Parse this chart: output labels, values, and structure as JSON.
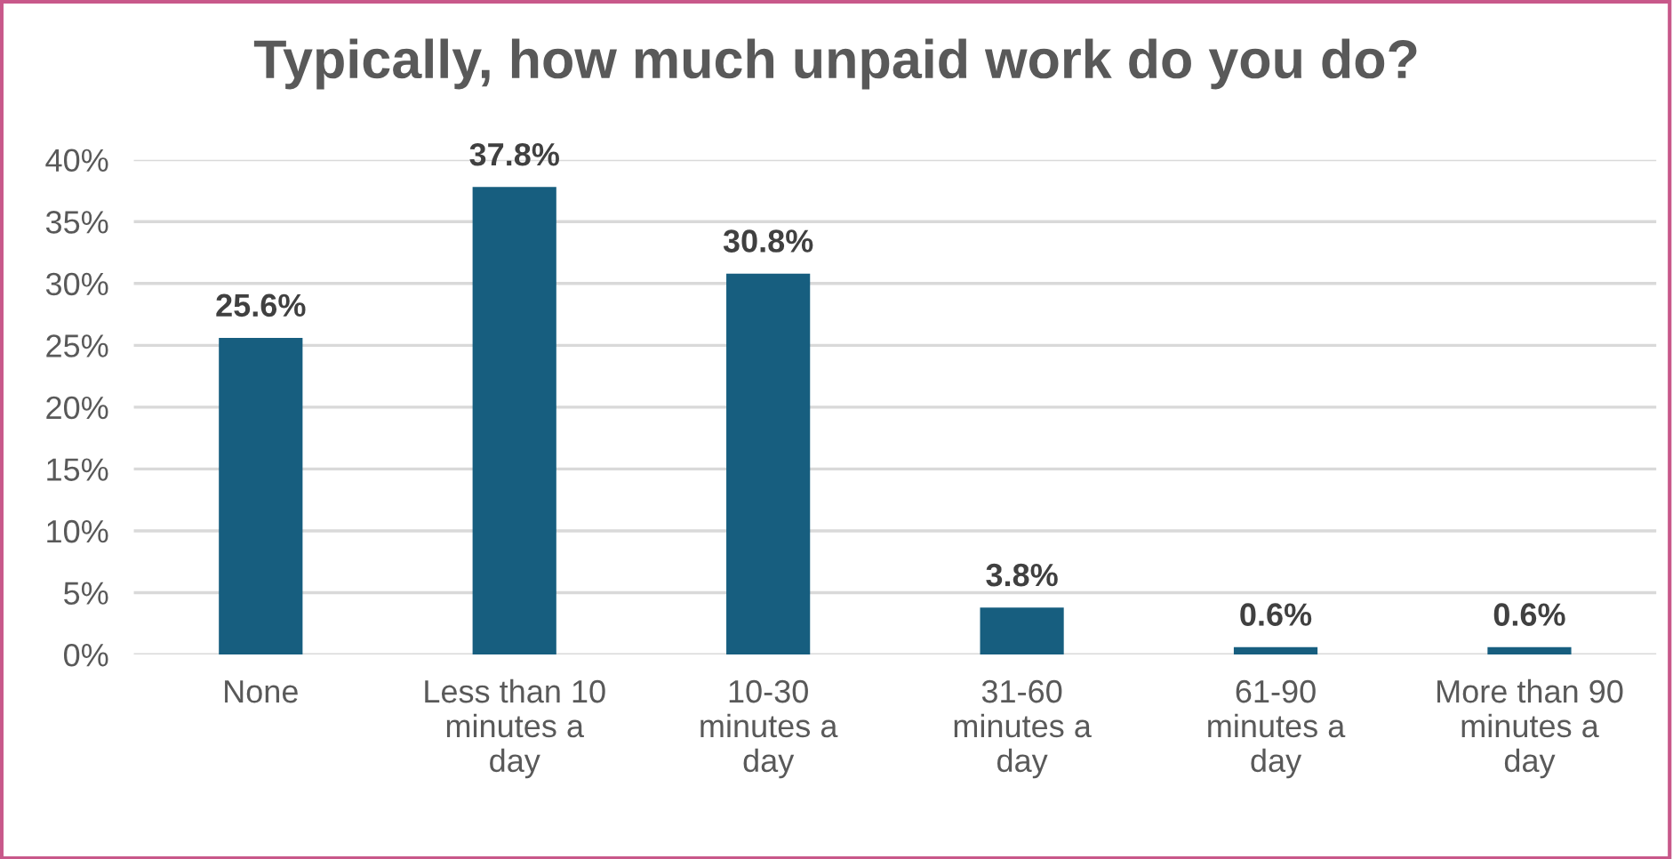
{
  "chart_data": {
    "type": "bar",
    "title": "Typically, how much unpaid work do you do?",
    "categories": [
      "None",
      "Less than 10\nminutes a\nday",
      "10-30\nminutes a\nday",
      "31-60\nminutes a\nday",
      "61-90\nminutes a\nday",
      "More than 90\nminutes a\nday"
    ],
    "values": [
      25.6,
      37.8,
      30.8,
      3.8,
      0.6,
      0.6
    ],
    "value_labels": [
      "25.6%",
      "37.8%",
      "30.8%",
      "3.8%",
      "0.6%",
      "0.6%"
    ],
    "color": "#175e7f",
    "ylim": [
      0,
      40
    ],
    "yticks": [
      {
        "value": 0,
        "label": "0%"
      },
      {
        "value": 5,
        "label": "5%"
      },
      {
        "value": 10,
        "label": "10%"
      },
      {
        "value": 15,
        "label": "15%"
      },
      {
        "value": 20,
        "label": "20%"
      },
      {
        "value": 25,
        "label": "25%"
      },
      {
        "value": 30,
        "label": "30%"
      },
      {
        "value": 35,
        "label": "35%"
      },
      {
        "value": 40,
        "label": "40%"
      }
    ],
    "grid": "y",
    "legend": false
  }
}
